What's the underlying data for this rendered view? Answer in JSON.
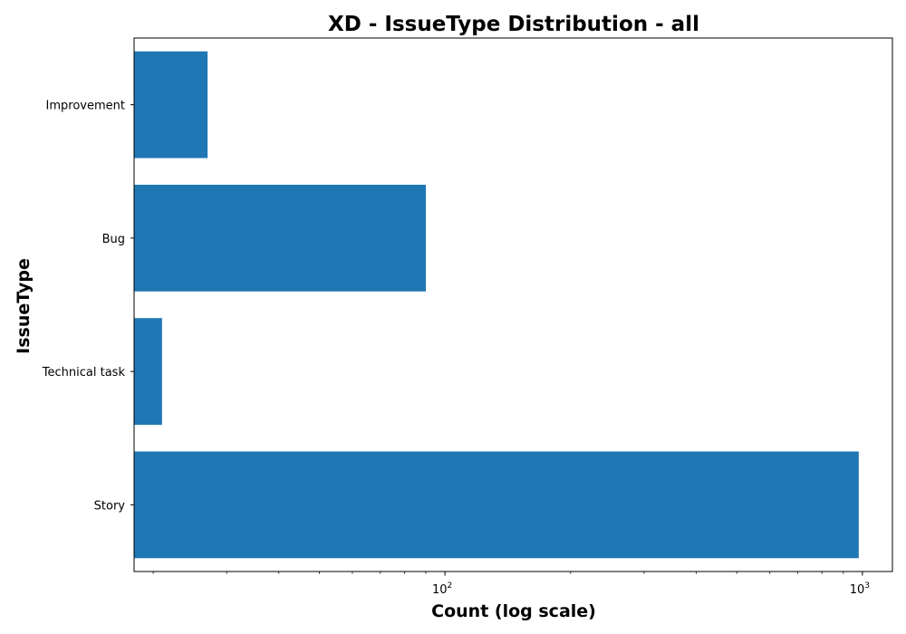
{
  "chart_data": {
    "type": "bar",
    "orientation": "horizontal",
    "title": "XD - IssueType Distribution - all",
    "xlabel": "Count (log scale)",
    "ylabel": "IssueType",
    "xscale": "log",
    "xlim": [
      18,
      1180
    ],
    "categories": [
      "Story",
      "Technical task",
      "Bug",
      "Improvement"
    ],
    "values": [
      980,
      21,
      90,
      27
    ],
    "major_ticks": [
      {
        "value": 100,
        "base": "10",
        "exp": "2"
      },
      {
        "value": 1000,
        "base": "10",
        "exp": "3"
      }
    ],
    "minor_ticks": [
      20,
      30,
      40,
      50,
      60,
      70,
      80,
      90,
      200,
      300,
      400,
      500,
      600,
      700,
      800,
      900
    ],
    "bar_color": "#1f77b4",
    "grid": false,
    "legend": false
  }
}
